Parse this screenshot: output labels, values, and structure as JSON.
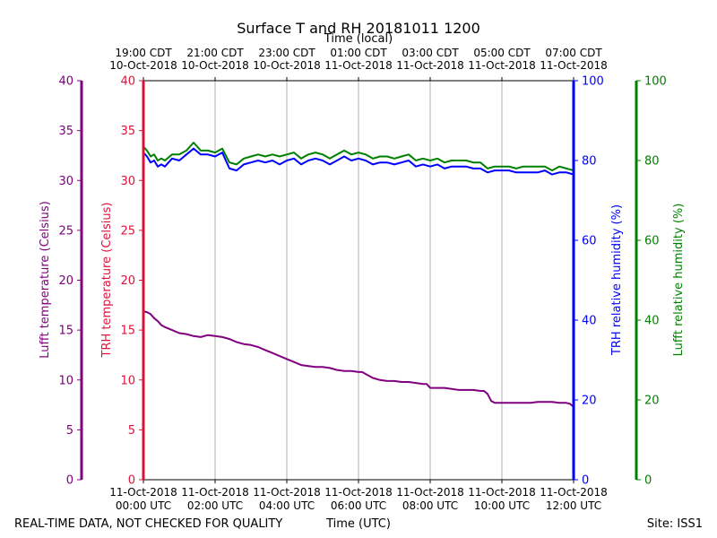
{
  "chart_data": {
    "type": "line",
    "title": "Surface T and RH 20181011 1200",
    "xlabel": "Time (UTC)",
    "top_xlabel": "Time (local)",
    "footer_left": "REAL-TIME DATA, NOT CHECKED FOR QUALITY",
    "footer_right": "Site: ISS1",
    "x_range_hours": [
      0,
      12
    ],
    "bottom_ticks": [
      {
        "h": 0,
        "line1": "11-Oct-2018",
        "line2": "00:00 UTC"
      },
      {
        "h": 2,
        "line1": "11-Oct-2018",
        "line2": "02:00 UTC"
      },
      {
        "h": 4,
        "line1": "11-Oct-2018",
        "line2": "04:00 UTC"
      },
      {
        "h": 6,
        "line1": "11-Oct-2018",
        "line2": "06:00 UTC"
      },
      {
        "h": 8,
        "line1": "11-Oct-2018",
        "line2": "08:00 UTC"
      },
      {
        "h": 10,
        "line1": "11-Oct-2018",
        "line2": "10:00 UTC"
      },
      {
        "h": 12,
        "line1": "11-Oct-2018",
        "line2": "12:00 UTC"
      }
    ],
    "top_ticks": [
      {
        "h": 0,
        "line1": "19:00 CDT",
        "line2": "10-Oct-2018"
      },
      {
        "h": 2,
        "line1": "21:00 CDT",
        "line2": "10-Oct-2018"
      },
      {
        "h": 4,
        "line1": "23:00 CDT",
        "line2": "10-Oct-2018"
      },
      {
        "h": 6,
        "line1": "01:00 CDT",
        "line2": "11-Oct-2018"
      },
      {
        "h": 8,
        "line1": "03:00 CDT",
        "line2": "11-Oct-2018"
      },
      {
        "h": 10,
        "line1": "05:00 CDT",
        "line2": "11-Oct-2018"
      },
      {
        "h": 12,
        "line1": "07:00 CDT",
        "line2": "11-Oct-2018"
      }
    ],
    "axes": {
      "lufft_temp": {
        "label": "Lufft temperature (Celsius)",
        "range": [
          0,
          40
        ],
        "ticks": [
          0,
          5,
          10,
          15,
          20,
          25,
          30,
          35,
          40
        ],
        "color": "#800080"
      },
      "trh_temp": {
        "label": "TRH temperature (Celsius)",
        "range": [
          0,
          40
        ],
        "ticks": [
          0,
          5,
          10,
          15,
          20,
          25,
          30,
          35,
          40
        ],
        "color": "#dc143c"
      },
      "trh_rh": {
        "label": "TRH relative humidity (%)",
        "range": [
          0,
          100
        ],
        "ticks": [
          0,
          20,
          40,
          60,
          80,
          100
        ],
        "color": "#0000ff"
      },
      "lufft_rh": {
        "label": "Lufft relative humidity (%)",
        "range": [
          0,
          100
        ],
        "ticks": [
          0,
          20,
          40,
          60,
          80,
          100
        ],
        "color": "#008000"
      }
    },
    "series": [
      {
        "name": "Lufft temperature",
        "axis": "lufft_temp",
        "color": "#800080",
        "x": [
          0,
          0.1,
          0.2,
          0.3,
          0.4,
          0.5,
          0.6,
          0.8,
          1.0,
          1.2,
          1.4,
          1.6,
          1.8,
          2.0,
          2.2,
          2.4,
          2.6,
          2.8,
          3.0,
          3.2,
          3.4,
          3.6,
          3.8,
          4.0,
          4.2,
          4.4,
          4.6,
          4.8,
          5.0,
          5.2,
          5.4,
          5.6,
          5.8,
          6.0,
          6.1,
          6.2,
          6.4,
          6.6,
          6.8,
          7.0,
          7.2,
          7.4,
          7.6,
          7.8,
          7.9,
          8.0,
          8.2,
          8.4,
          8.6,
          8.8,
          9.0,
          9.2,
          9.4,
          9.5,
          9.6,
          9.7,
          9.8,
          10.0,
          10.2,
          10.4,
          10.6,
          10.8,
          11.0,
          11.2,
          11.4,
          11.6,
          11.8,
          11.9,
          12.0
        ],
        "values": [
          16.9,
          16.8,
          16.6,
          16.2,
          15.9,
          15.5,
          15.3,
          15.0,
          14.7,
          14.6,
          14.4,
          14.3,
          14.5,
          14.4,
          14.3,
          14.1,
          13.8,
          13.6,
          13.5,
          13.3,
          13.0,
          12.7,
          12.4,
          12.1,
          11.8,
          11.5,
          11.4,
          11.3,
          11.3,
          11.2,
          11.0,
          10.9,
          10.9,
          10.8,
          10.8,
          10.6,
          10.2,
          10.0,
          9.9,
          9.9,
          9.8,
          9.8,
          9.7,
          9.6,
          9.6,
          9.2,
          9.2,
          9.2,
          9.1,
          9.0,
          9.0,
          9.0,
          8.9,
          8.9,
          8.6,
          7.9,
          7.7,
          7.7,
          7.7,
          7.7,
          7.7,
          7.7,
          7.8,
          7.8,
          7.8,
          7.7,
          7.7,
          7.6,
          7.3
        ]
      },
      {
        "name": "TRH relative humidity",
        "axis": "trh_rh",
        "color": "#0000ff",
        "x": [
          0,
          0.1,
          0.2,
          0.3,
          0.4,
          0.5,
          0.6,
          0.8,
          1.0,
          1.2,
          1.4,
          1.6,
          1.8,
          2.0,
          2.2,
          2.4,
          2.6,
          2.8,
          3.0,
          3.2,
          3.4,
          3.6,
          3.8,
          4.0,
          4.2,
          4.4,
          4.6,
          4.8,
          5.0,
          5.2,
          5.4,
          5.6,
          5.8,
          6.0,
          6.2,
          6.4,
          6.6,
          6.8,
          7.0,
          7.2,
          7.4,
          7.6,
          7.8,
          8.0,
          8.2,
          8.4,
          8.6,
          8.8,
          9.0,
          9.2,
          9.4,
          9.6,
          9.8,
          10.0,
          10.2,
          10.4,
          10.6,
          10.8,
          11.0,
          11.2,
          11.4,
          11.6,
          11.8,
          12.0
        ],
        "values": [
          82,
          81,
          79.5,
          80,
          78.5,
          79,
          78.5,
          80.5,
          80,
          81.5,
          83,
          81.5,
          81.5,
          81,
          82,
          78,
          77.5,
          79,
          79.5,
          80,
          79.5,
          80,
          79,
          80,
          80.5,
          79,
          80,
          80.5,
          80,
          79,
          80,
          81,
          80,
          80.5,
          80,
          79,
          79.5,
          79.5,
          79,
          79.5,
          80,
          78.5,
          79,
          78.5,
          79,
          78,
          78.5,
          78.5,
          78.5,
          78,
          78,
          77,
          77.5,
          77.5,
          77.5,
          77,
          77,
          77,
          77,
          77.5,
          76.5,
          77,
          77,
          76.5
        ]
      },
      {
        "name": "Lufft relative humidity",
        "axis": "lufft_rh",
        "color": "#008000",
        "x": [
          0,
          0.1,
          0.2,
          0.3,
          0.4,
          0.5,
          0.6,
          0.8,
          1.0,
          1.2,
          1.4,
          1.6,
          1.8,
          2.0,
          2.2,
          2.4,
          2.6,
          2.8,
          3.0,
          3.2,
          3.4,
          3.6,
          3.8,
          4.0,
          4.2,
          4.4,
          4.6,
          4.8,
          5.0,
          5.2,
          5.4,
          5.6,
          5.8,
          6.0,
          6.2,
          6.4,
          6.6,
          6.8,
          7.0,
          7.2,
          7.4,
          7.6,
          7.8,
          8.0,
          8.2,
          8.4,
          8.6,
          8.8,
          9.0,
          9.2,
          9.4,
          9.6,
          9.8,
          10.0,
          10.2,
          10.4,
          10.6,
          10.8,
          11.0,
          11.2,
          11.4,
          11.6,
          11.8,
          12.0
        ],
        "values": [
          83.5,
          82.5,
          81,
          81.5,
          80,
          80.5,
          80,
          81.5,
          81.5,
          82.5,
          84.5,
          82.5,
          82.5,
          82,
          83,
          79.5,
          79,
          80.5,
          81,
          81.5,
          81,
          81.5,
          81,
          81.5,
          82,
          80.5,
          81.5,
          82,
          81.5,
          80.5,
          81.5,
          82.5,
          81.5,
          82,
          81.5,
          80.5,
          81,
          81,
          80.5,
          81,
          81.5,
          80,
          80.5,
          80,
          80.5,
          79.5,
          80,
          80,
          80,
          79.5,
          79.5,
          78,
          78.5,
          78.5,
          78.5,
          78,
          78.5,
          78.5,
          78.5,
          78.5,
          77.5,
          78.5,
          78,
          77.5
        ]
      }
    ]
  }
}
